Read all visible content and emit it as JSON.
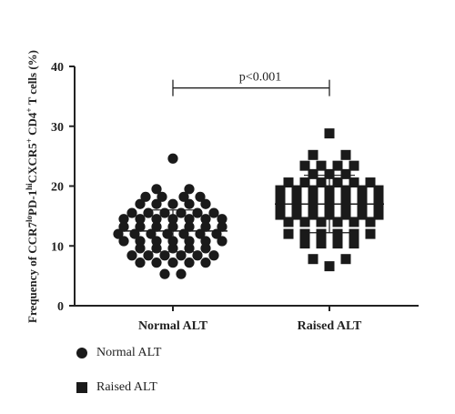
{
  "chart_data": {
    "type": "scatter",
    "title": "",
    "xlabel": "",
    "ylabel_parts": [
      {
        "t": "Frequency of CCR7",
        "sup": false
      },
      {
        "t": "lo",
        "sup": true
      },
      {
        "t": "PD-1",
        "sup": false
      },
      {
        "t": "hi",
        "sup": true
      },
      {
        "t": "CXCR5",
        "sup": false
      },
      {
        "t": "+",
        "sup": true
      },
      {
        "t": " CD4",
        "sup": false
      },
      {
        "t": "+",
        "sup": true
      },
      {
        "t": " T cells (%)",
        "sup": false
      }
    ],
    "ylim": [
      0,
      40
    ],
    "yticks": [
      0,
      10,
      20,
      30,
      40
    ],
    "categories": [
      "Normal ALT",
      "Raised ALT"
    ],
    "series": [
      {
        "name": "Normal ALT",
        "marker": "circle",
        "mean": 12.5,
        "sd": 3.5,
        "points": [
          [
            0,
            24.6
          ],
          [
            -0.3,
            19.5
          ],
          [
            0.3,
            19.5
          ],
          [
            -0.5,
            18.2
          ],
          [
            -0.2,
            18.2
          ],
          [
            0.2,
            18.2
          ],
          [
            0.5,
            18.2
          ],
          [
            -0.6,
            17.0
          ],
          [
            -0.3,
            17.0
          ],
          [
            0,
            17.0
          ],
          [
            0.3,
            17.0
          ],
          [
            0.6,
            17.0
          ],
          [
            -0.75,
            15.5
          ],
          [
            -0.45,
            15.5
          ],
          [
            -0.15,
            15.5
          ],
          [
            0.15,
            15.5
          ],
          [
            0.45,
            15.5
          ],
          [
            0.75,
            15.5
          ],
          [
            -0.9,
            14.5
          ],
          [
            -0.6,
            14.5
          ],
          [
            -0.3,
            14.5
          ],
          [
            0,
            14.5
          ],
          [
            0.3,
            14.5
          ],
          [
            0.6,
            14.5
          ],
          [
            0.9,
            14.5
          ],
          [
            -0.9,
            13.2
          ],
          [
            -0.6,
            13.2
          ],
          [
            -0.3,
            13.2
          ],
          [
            0,
            13.2
          ],
          [
            0.3,
            13.2
          ],
          [
            0.6,
            13.2
          ],
          [
            0.9,
            13.2
          ],
          [
            -1.0,
            12.0
          ],
          [
            -0.7,
            12.0
          ],
          [
            -0.4,
            12.0
          ],
          [
            -0.1,
            12.0
          ],
          [
            0.2,
            12.0
          ],
          [
            0.5,
            12.0
          ],
          [
            0.8,
            12.0
          ],
          [
            -0.9,
            10.8
          ],
          [
            -0.6,
            10.8
          ],
          [
            -0.3,
            10.8
          ],
          [
            0,
            10.8
          ],
          [
            0.3,
            10.8
          ],
          [
            0.6,
            10.8
          ],
          [
            0.9,
            10.8
          ],
          [
            -0.6,
            9.6
          ],
          [
            -0.3,
            9.6
          ],
          [
            0,
            9.6
          ],
          [
            0.3,
            9.6
          ],
          [
            0.6,
            9.6
          ],
          [
            -0.75,
            8.4
          ],
          [
            -0.45,
            8.4
          ],
          [
            -0.15,
            8.4
          ],
          [
            0.15,
            8.4
          ],
          [
            0.45,
            8.4
          ],
          [
            0.75,
            8.4
          ],
          [
            -0.6,
            7.2
          ],
          [
            -0.3,
            7.2
          ],
          [
            0,
            7.2
          ],
          [
            0.3,
            7.2
          ],
          [
            0.6,
            7.2
          ],
          [
            -0.15,
            5.3
          ],
          [
            0.15,
            5.3
          ]
        ]
      },
      {
        "name": "Raised ALT",
        "marker": "square",
        "mean": 17.0,
        "sd": 4.8,
        "points": [
          [
            0,
            28.8
          ],
          [
            -0.3,
            25.2
          ],
          [
            0.3,
            25.2
          ],
          [
            -0.45,
            23.4
          ],
          [
            -0.15,
            23.4
          ],
          [
            0.15,
            23.4
          ],
          [
            0.45,
            23.4
          ],
          [
            -0.3,
            22.0
          ],
          [
            0,
            22.0
          ],
          [
            0.3,
            22.0
          ],
          [
            -0.75,
            20.6
          ],
          [
            -0.45,
            20.6
          ],
          [
            -0.15,
            20.6
          ],
          [
            0.15,
            20.6
          ],
          [
            0.45,
            20.6
          ],
          [
            0.75,
            20.6
          ],
          [
            -0.9,
            19.3
          ],
          [
            -0.6,
            19.3
          ],
          [
            -0.3,
            19.3
          ],
          [
            0,
            19.3
          ],
          [
            0.3,
            19.3
          ],
          [
            0.6,
            19.3
          ],
          [
            0.9,
            19.3
          ],
          [
            -0.9,
            18.0
          ],
          [
            -0.6,
            18.0
          ],
          [
            -0.3,
            18.0
          ],
          [
            0,
            18.0
          ],
          [
            0.3,
            18.0
          ],
          [
            0.6,
            18.0
          ],
          [
            0.9,
            18.0
          ],
          [
            -0.9,
            16.6
          ],
          [
            -0.6,
            16.6
          ],
          [
            -0.3,
            16.6
          ],
          [
            0,
            16.6
          ],
          [
            0.3,
            16.6
          ],
          [
            0.6,
            16.6
          ],
          [
            0.9,
            16.6
          ],
          [
            -0.9,
            15.2
          ],
          [
            -0.6,
            15.2
          ],
          [
            -0.3,
            15.2
          ],
          [
            0,
            15.2
          ],
          [
            0.3,
            15.2
          ],
          [
            0.6,
            15.2
          ],
          [
            0.9,
            15.2
          ],
          [
            -0.75,
            14.0
          ],
          [
            -0.45,
            14.0
          ],
          [
            -0.15,
            14.0
          ],
          [
            0.15,
            14.0
          ],
          [
            0.45,
            14.0
          ],
          [
            0.75,
            14.0
          ],
          [
            -0.75,
            12.0
          ],
          [
            -0.45,
            12.0
          ],
          [
            -0.15,
            12.0
          ],
          [
            0.15,
            12.0
          ],
          [
            0.45,
            12.0
          ],
          [
            0.75,
            12.0
          ],
          [
            -0.45,
            10.4
          ],
          [
            -0.15,
            10.4
          ],
          [
            0.15,
            10.4
          ],
          [
            0.45,
            10.4
          ],
          [
            -0.3,
            7.8
          ],
          [
            0.3,
            7.8
          ],
          [
            0,
            6.6
          ]
        ]
      }
    ],
    "annotation": {
      "text": "p<0.001",
      "between": [
        0,
        1
      ],
      "y": 36.4
    },
    "grid": false,
    "legend_placement": "bottom-left",
    "marker_color": "#1a1a1a"
  },
  "legend": [
    {
      "label": "Normal ALT",
      "marker": "circle"
    },
    {
      "label": "Raised ALT",
      "marker": "square"
    }
  ]
}
